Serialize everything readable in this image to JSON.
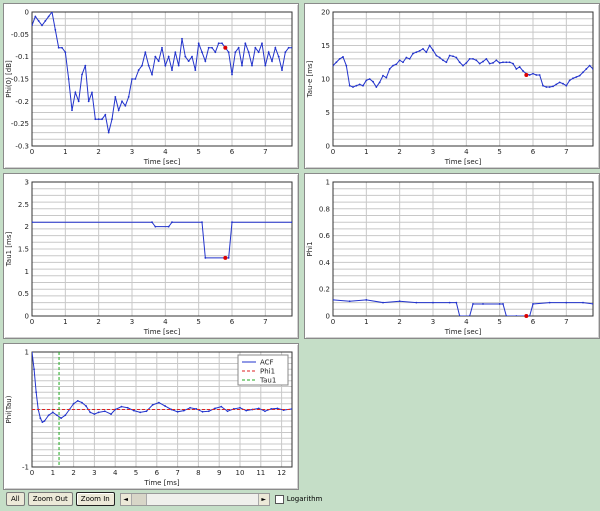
{
  "chart_data": [
    {
      "id": "p1",
      "type": "line",
      "ylabel": "Phi(0) [dB]",
      "xlabel": "Time [sec]",
      "xlim": [
        0,
        7.8
      ],
      "ylim": [
        -0.3,
        0
      ],
      "xticks": [
        0,
        1,
        2,
        3,
        4,
        5,
        6,
        7
      ],
      "xtick_labels": [
        "0",
        "1",
        "2",
        "3",
        "4",
        "5",
        "6",
        "7"
      ],
      "yticks": [
        0,
        -0.05,
        -0.1,
        -0.15,
        -0.2,
        -0.25,
        -0.3
      ],
      "ytick_labels": [
        "0",
        "-0.05",
        "-0.1",
        "-0.15",
        "-0.2",
        "-0.25",
        "-0.3"
      ],
      "grid": true,
      "color": "#2233cc",
      "x": [
        0,
        0.1,
        0.2,
        0.3,
        0.4,
        0.5,
        0.6,
        0.7,
        0.8,
        0.9,
        1.0,
        1.1,
        1.2,
        1.3,
        1.4,
        1.5,
        1.6,
        1.7,
        1.8,
        1.9,
        2.0,
        2.1,
        2.2,
        2.3,
        2.4,
        2.5,
        2.6,
        2.7,
        2.8,
        2.9,
        3.0,
        3.1,
        3.2,
        3.3,
        3.4,
        3.5,
        3.6,
        3.7,
        3.8,
        3.9,
        4.0,
        4.1,
        4.2,
        4.3,
        4.4,
        4.5,
        4.6,
        4.7,
        4.8,
        4.9,
        5.0,
        5.1,
        5.2,
        5.3,
        5.4,
        5.5,
        5.6,
        5.7,
        5.8,
        5.9,
        6.0,
        6.1,
        6.2,
        6.3,
        6.4,
        6.5,
        6.6,
        6.7,
        6.8,
        6.9,
        7.0,
        7.1,
        7.2,
        7.3,
        7.4,
        7.5,
        7.6,
        7.7,
        7.8
      ],
      "values": [
        -0.03,
        -0.01,
        -0.02,
        -0.03,
        -0.02,
        -0.01,
        0,
        -0.04,
        -0.08,
        -0.08,
        -0.09,
        -0.15,
        -0.22,
        -0.18,
        -0.2,
        -0.14,
        -0.12,
        -0.2,
        -0.18,
        -0.24,
        -0.24,
        -0.24,
        -0.23,
        -0.27,
        -0.24,
        -0.19,
        -0.22,
        -0.2,
        -0.21,
        -0.19,
        -0.15,
        -0.15,
        -0.13,
        -0.12,
        -0.09,
        -0.12,
        -0.14,
        -0.1,
        -0.11,
        -0.08,
        -0.12,
        -0.1,
        -0.13,
        -0.09,
        -0.12,
        -0.06,
        -0.1,
        -0.11,
        -0.1,
        -0.13,
        -0.07,
        -0.09,
        -0.11,
        -0.08,
        -0.08,
        -0.09,
        -0.07,
        -0.07,
        -0.08,
        -0.09,
        -0.14,
        -0.09,
        -0.08,
        -0.12,
        -0.07,
        -0.09,
        -0.12,
        -0.08,
        -0.09,
        -0.07,
        -0.12,
        -0.09,
        -0.11,
        -0.08,
        -0.1,
        -0.13,
        -0.09,
        -0.08,
        -0.08
      ],
      "marker_x": 5.8,
      "marker_y": -0.08,
      "marker_color": "#dd0000"
    },
    {
      "id": "p2",
      "type": "line",
      "ylabel": "Tau-e [ms]",
      "xlabel": "Time [sec]",
      "xlim": [
        0,
        7.8
      ],
      "ylim": [
        0,
        20
      ],
      "xticks": [
        0,
        1,
        2,
        3,
        4,
        5,
        6,
        7
      ],
      "xtick_labels": [
        "0",
        "1",
        "2",
        "3",
        "4",
        "5",
        "6",
        "7"
      ],
      "yticks": [
        0,
        5,
        10,
        15,
        20
      ],
      "ytick_labels": [
        "0",
        "5",
        "10",
        "15",
        "20"
      ],
      "grid": true,
      "color": "#2233cc",
      "x": [
        0,
        0.1,
        0.2,
        0.3,
        0.4,
        0.5,
        0.6,
        0.7,
        0.8,
        0.9,
        1.0,
        1.1,
        1.2,
        1.3,
        1.4,
        1.5,
        1.6,
        1.7,
        1.8,
        1.9,
        2.0,
        2.1,
        2.2,
        2.3,
        2.4,
        2.5,
        2.6,
        2.7,
        2.8,
        2.9,
        3.0,
        3.1,
        3.2,
        3.3,
        3.4,
        3.5,
        3.6,
        3.7,
        3.8,
        3.9,
        4.0,
        4.1,
        4.2,
        4.3,
        4.4,
        4.5,
        4.6,
        4.7,
        4.8,
        4.9,
        5.0,
        5.1,
        5.2,
        5.3,
        5.4,
        5.5,
        5.6,
        5.7,
        5.8,
        5.9,
        6.0,
        6.1,
        6.2,
        6.3,
        6.4,
        6.5,
        6.6,
        6.7,
        6.8,
        6.9,
        7.0,
        7.1,
        7.2,
        7.3,
        7.4,
        7.5,
        7.6,
        7.7,
        7.8
      ],
      "values": [
        12,
        12.5,
        13,
        13.3,
        12,
        9,
        8.8,
        9,
        9.2,
        9,
        9.8,
        10,
        9.6,
        8.8,
        9.5,
        10.5,
        10.2,
        11.5,
        12,
        12.2,
        12.8,
        12.5,
        13.2,
        13,
        13.8,
        14,
        14.2,
        14.5,
        14,
        15,
        14.3,
        13.5,
        13.2,
        12.8,
        12.5,
        13.5,
        13.4,
        13.2,
        12.5,
        12,
        12.4,
        13,
        13,
        12.8,
        12.3,
        12.6,
        13,
        12.3,
        12.4,
        12.8,
        12.4,
        12.5,
        12.5,
        12.5,
        12.3,
        11.5,
        11.8,
        11.2,
        10.8,
        10.6,
        10.8,
        10.6,
        10.6,
        9,
        8.8,
        8.8,
        8.9,
        9.2,
        9.5,
        9.3,
        9,
        9.8,
        10.1,
        10.3,
        10.5,
        11,
        11.5,
        12,
        11.5
      ],
      "marker_x": 5.8,
      "marker_y": 10.6,
      "marker_color": "#dd0000"
    },
    {
      "id": "p3",
      "type": "line",
      "ylabel": "Tau1 [ms]",
      "xlabel": "Time [sec]",
      "xlim": [
        0,
        7.8
      ],
      "ylim": [
        0,
        3
      ],
      "xticks": [
        0,
        1,
        2,
        3,
        4,
        5,
        6,
        7
      ],
      "xtick_labels": [
        "0",
        "1",
        "2",
        "3",
        "4",
        "5",
        "6",
        "7"
      ],
      "yticks": [
        0,
        0.5,
        1,
        1.5,
        2,
        2.5,
        3
      ],
      "ytick_labels": [
        "0",
        "0.5",
        "1",
        "1.5",
        "2",
        "2.5",
        "3"
      ],
      "grid": true,
      "color": "#2233cc",
      "x": [
        0,
        3.6,
        3.7,
        4.1,
        4.2,
        5.1,
        5.2,
        5.9,
        6.0,
        7.8
      ],
      "values": [
        2.1,
        2.1,
        2.0,
        2.0,
        2.1,
        2.1,
        1.3,
        1.3,
        2.1,
        2.1
      ],
      "marker_x": 5.8,
      "marker_y": 1.3,
      "marker_color": "#dd0000"
    },
    {
      "id": "p4",
      "type": "line",
      "ylabel": "Phi1",
      "xlabel": "Time [sec]",
      "xlim": [
        0,
        7.8
      ],
      "ylim": [
        0,
        1
      ],
      "xticks": [
        0,
        1,
        2,
        3,
        4,
        5,
        6,
        7
      ],
      "xtick_labels": [
        "0",
        "1",
        "2",
        "3",
        "4",
        "5",
        "6",
        "7"
      ],
      "yticks": [
        0,
        0.2,
        0.4,
        0.6,
        0.8,
        1
      ],
      "ytick_labels": [
        "0",
        "0.2",
        "0.4",
        "0.6",
        "0.8",
        "1"
      ],
      "grid": true,
      "color": "#2233cc",
      "x": [
        0,
        0.5,
        1.0,
        1.5,
        2.0,
        2.5,
        3.0,
        3.5,
        3.7,
        3.8,
        4.1,
        4.2,
        4.5,
        5.0,
        5.1,
        5.2,
        5.5,
        5.9,
        6.0,
        6.5,
        7.0,
        7.5,
        7.8
      ],
      "values": [
        0.12,
        0.11,
        0.12,
        0.1,
        0.11,
        0.1,
        0.1,
        0.1,
        0.1,
        0,
        0,
        0.09,
        0.09,
        0.09,
        0.09,
        0,
        0,
        0,
        0.09,
        0.1,
        0.1,
        0.1,
        0.09
      ],
      "marker_x": 5.8,
      "marker_y": 0,
      "marker_color": "#dd0000"
    },
    {
      "id": "p5",
      "type": "line",
      "ylabel": "Phi(Tau)",
      "xlabel": "Time [ms]",
      "xlim": [
        0,
        12.5
      ],
      "ylim": [
        -1,
        1
      ],
      "xticks": [
        0,
        1,
        2,
        3,
        4,
        5,
        6,
        7,
        8,
        9,
        10,
        11,
        12
      ],
      "xtick_labels": [
        "0",
        "1",
        "2",
        "3",
        "4",
        "5",
        "6",
        "7",
        "8",
        "9",
        "10",
        "11",
        "12"
      ],
      "yticks": [
        1,
        0,
        -1
      ],
      "ytick_labels": [
        "1",
        "",
        "-1"
      ],
      "grid": true,
      "legend": {
        "position": "top-right",
        "items": [
          {
            "name": "ACF",
            "color": "#2233cc",
            "style": "solid"
          },
          {
            "name": "Phi1",
            "color": "#dd2222",
            "style": "dashed"
          },
          {
            "name": "Tau1",
            "color": "#22aa22",
            "style": "dashed"
          }
        ]
      },
      "series": [
        {
          "name": "ACF",
          "color": "#2233cc",
          "x": [
            0,
            0.1,
            0.2,
            0.3,
            0.4,
            0.5,
            0.6,
            0.8,
            1.0,
            1.2,
            1.4,
            1.6,
            1.8,
            2.0,
            2.2,
            2.4,
            2.6,
            2.8,
            3.0,
            3.2,
            3.5,
            3.8,
            4.0,
            4.3,
            4.6,
            4.9,
            5.2,
            5.5,
            5.8,
            6.1,
            6.4,
            6.7,
            7.0,
            7.3,
            7.6,
            7.9,
            8.2,
            8.5,
            8.8,
            9.1,
            9.4,
            9.7,
            10.0,
            10.3,
            10.6,
            10.9,
            11.2,
            11.5,
            11.8,
            12.1,
            12.5
          ],
          "values": [
            1,
            0.7,
            0.3,
            0,
            -0.15,
            -0.22,
            -0.2,
            -0.1,
            -0.05,
            -0.1,
            -0.15,
            -0.1,
            0,
            0.1,
            0.15,
            0.12,
            0.06,
            -0.05,
            -0.08,
            -0.05,
            -0.03,
            -0.08,
            0,
            0.05,
            0.03,
            -0.02,
            -0.05,
            -0.03,
            0.08,
            0.12,
            0.06,
            0,
            -0.04,
            -0.02,
            0.03,
            0.01,
            -0.04,
            -0.03,
            0.02,
            0.05,
            -0.03,
            0.01,
            0.03,
            -0.02,
            0,
            0.02,
            -0.03,
            0.01,
            0.02,
            -0.01,
            0.01
          ]
        },
        {
          "name": "Phi1",
          "color": "#dd2222",
          "const_y": 0
        },
        {
          "name": "Tau1",
          "color": "#22aa22",
          "const_x": 1.3
        }
      ]
    }
  ],
  "toolbar": {
    "all_label": "All",
    "zoom_out_label": "Zoom Out",
    "zoom_in_label": "Zoom In",
    "log_label": "Logarithm"
  },
  "icons": {
    "scroll_left": "◄",
    "scroll_right": "►"
  }
}
